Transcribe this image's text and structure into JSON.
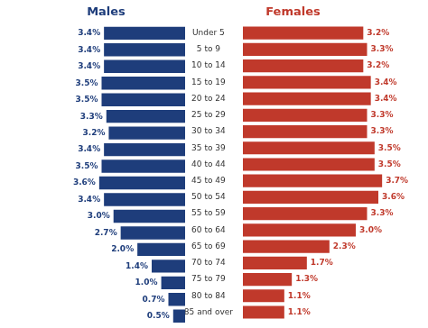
{
  "chart_data": {
    "type": "bar",
    "orientation": "horizontal",
    "categories": [
      "Under 5",
      "5 to 9",
      "10 to 14",
      "15 to 19",
      "20 to 24",
      "25 to 29",
      "30 to 34",
      "35 to 39",
      "40 to 44",
      "45 to 49",
      "50 to 54",
      "55 to 59",
      "60 to 64",
      "65 to 69",
      "70 to 74",
      "75 to 79",
      "80 to 84",
      "85 and over"
    ],
    "series": [
      {
        "name": "Males",
        "color": "#1e3d7b",
        "values": [
          3.4,
          3.4,
          3.4,
          3.5,
          3.5,
          3.3,
          3.2,
          3.4,
          3.5,
          3.6,
          3.4,
          3.0,
          2.7,
          2.0,
          1.4,
          1.0,
          0.7,
          0.5
        ],
        "value_labels": [
          "3.4%",
          "3.4%",
          "3.4%",
          "3.5%",
          "3.5%",
          "3.3%",
          "3.2%",
          "3.4%",
          "3.5%",
          "3.6%",
          "3.4%",
          "3.0%",
          "2.7%",
          "2.0%",
          "1.4%",
          "1.0%",
          "0.7%",
          "0.5%"
        ]
      },
      {
        "name": "Females",
        "color": "#c0392b",
        "values": [
          3.2,
          3.3,
          3.2,
          3.4,
          3.4,
          3.3,
          3.3,
          3.5,
          3.5,
          3.7,
          3.6,
          3.3,
          3.0,
          2.3,
          1.7,
          1.3,
          1.1,
          1.1
        ],
        "value_labels": [
          "3.2%",
          "3.3%",
          "3.2%",
          "3.4%",
          "3.4%",
          "3.3%",
          "3.3%",
          "3.5%",
          "3.5%",
          "3.7%",
          "3.6%",
          "3.3%",
          "3.0%",
          "2.3%",
          "1.7%",
          "1.3%",
          "1.1%",
          "1.1%"
        ]
      }
    ],
    "xlim": [
      0,
      4.2
    ],
    "data_labels": true,
    "tick_labels": "y",
    "grid": false
  }
}
